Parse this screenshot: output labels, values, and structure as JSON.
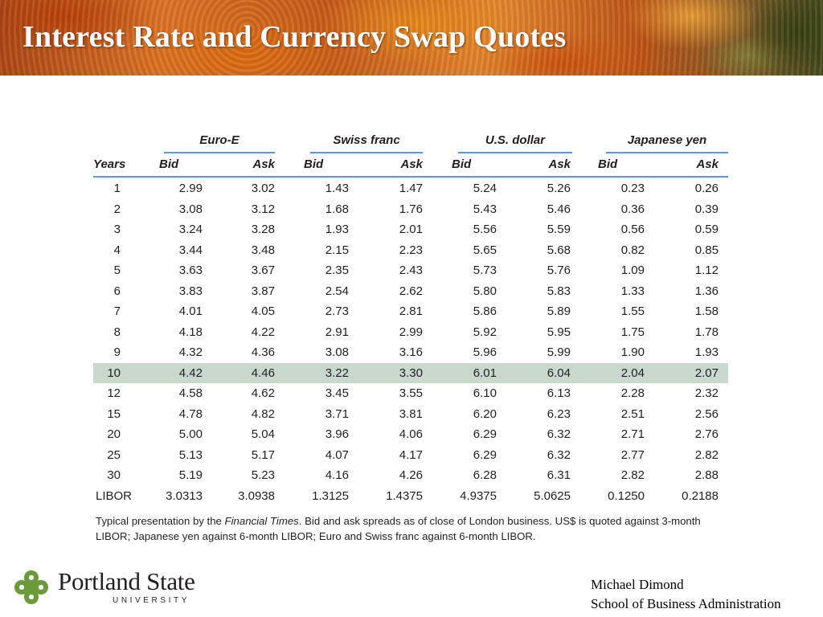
{
  "slide": {
    "title": "Interest Rate and Currency Swap Quotes"
  },
  "table": {
    "groups": [
      "Euro-E",
      "Swiss franc",
      "U.S. dollar",
      "Japanese yen"
    ],
    "years_label": "Years",
    "bid_label": "Bid",
    "ask_label": "Ask",
    "highlighted_row": "10",
    "rows": [
      [
        "1",
        "2.99",
        "3.02",
        "1.43",
        "1.47",
        "5.24",
        "5.26",
        "0.23",
        "0.26"
      ],
      [
        "2",
        "3.08",
        "3.12",
        "1.68",
        "1.76",
        "5.43",
        "5.46",
        "0.36",
        "0.39"
      ],
      [
        "3",
        "3.24",
        "3.28",
        "1.93",
        "2.01",
        "5.56",
        "5.59",
        "0.56",
        "0.59"
      ],
      [
        "4",
        "3.44",
        "3.48",
        "2.15",
        "2.23",
        "5.65",
        "5.68",
        "0.82",
        "0.85"
      ],
      [
        "5",
        "3.63",
        "3.67",
        "2.35",
        "2.43",
        "5.73",
        "5.76",
        "1.09",
        "1.12"
      ],
      [
        "6",
        "3.83",
        "3.87",
        "2.54",
        "2.62",
        "5.80",
        "5.83",
        "1.33",
        "1.36"
      ],
      [
        "7",
        "4.01",
        "4.05",
        "2.73",
        "2.81",
        "5.86",
        "5.89",
        "1.55",
        "1.58"
      ],
      [
        "8",
        "4.18",
        "4.22",
        "2.91",
        "2.99",
        "5.92",
        "5.95",
        "1.75",
        "1.78"
      ],
      [
        "9",
        "4.32",
        "4.36",
        "3.08",
        "3.16",
        "5.96",
        "5.99",
        "1.90",
        "1.93"
      ],
      [
        "10",
        "4.42",
        "4.46",
        "3.22",
        "3.30",
        "6.01",
        "6.04",
        "2.04",
        "2.07"
      ],
      [
        "12",
        "4.58",
        "4.62",
        "3.45",
        "3.55",
        "6.10",
        "6.13",
        "2.28",
        "2.32"
      ],
      [
        "15",
        "4.78",
        "4.82",
        "3.71",
        "3.81",
        "6.20",
        "6.23",
        "2.51",
        "2.56"
      ],
      [
        "20",
        "5.00",
        "5.04",
        "3.96",
        "4.06",
        "6.29",
        "6.32",
        "2.71",
        "2.76"
      ],
      [
        "25",
        "5.13",
        "5.17",
        "4.07",
        "4.17",
        "6.29",
        "6.32",
        "2.77",
        "2.82"
      ],
      [
        "30",
        "5.19",
        "5.23",
        "4.16",
        "4.26",
        "6.28",
        "6.31",
        "2.82",
        "2.88"
      ],
      [
        "LIBOR",
        "3.0313",
        "3.0938",
        "1.3125",
        "1.4375",
        "4.9375",
        "5.0625",
        "0.1250",
        "0.2188"
      ]
    ]
  },
  "footnote": {
    "prefix": "Typical presentation by the ",
    "source": "Financial Times",
    "rest": ". Bid and ask spreads as of close of London business. US$ is quoted against 3-month LIBOR; Japanese yen against 6-month LIBOR; Euro and Swiss franc against 6-month LIBOR."
  },
  "footer": {
    "logo_name": "Portland State",
    "logo_sub": "UNIVERSITY",
    "logo_icon": "psu-leaf-knot-icon",
    "author_name": "Michael Dimond",
    "author_school": "School of Business Administration"
  },
  "colors": {
    "rule": "#5a9bd4",
    "highlight_row": "#c8d8cd",
    "logo_green": "#6a9a3a"
  }
}
